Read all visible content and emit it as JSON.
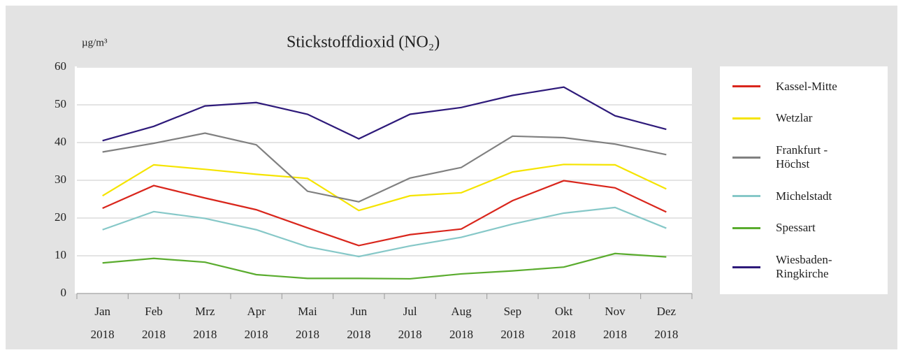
{
  "chart_data": {
    "type": "line",
    "title": "Stickstoffdioxid (NO₂)",
    "y_label": "µg/m³",
    "categories": [
      [
        "Jan",
        "2018"
      ],
      [
        "Feb",
        "2018"
      ],
      [
        "Mrz",
        "2018"
      ],
      [
        "Apr",
        "2018"
      ],
      [
        "Mai",
        "2018"
      ],
      [
        "Jun",
        "2018"
      ],
      [
        "Jul",
        "2018"
      ],
      [
        "Aug",
        "2018"
      ],
      [
        "Sep",
        "2018"
      ],
      [
        "Okt",
        "2018"
      ],
      [
        "Nov",
        "2018"
      ],
      [
        "Dez",
        "2018"
      ]
    ],
    "ylim": [
      0,
      60
    ],
    "yticks": [
      0,
      10,
      20,
      30,
      40,
      50,
      60
    ],
    "grid": true,
    "series": [
      {
        "name": "Kassel-Mitte",
        "color": "#d9261c",
        "values": [
          22.6,
          28.6,
          25.3,
          22.2,
          17.4,
          12.7,
          15.6,
          17.1,
          24.6,
          29.9,
          28,
          21.6
        ]
      },
      {
        "name": "Wetzlar",
        "color": "#f5e400",
        "values": [
          25.9,
          34.1,
          32.9,
          31.6,
          30.5,
          22,
          25.9,
          26.7,
          32.2,
          34.2,
          34.1,
          27.7
        ]
      },
      {
        "name": "Frankfurt - Höchst",
        "color": "#808080",
        "values": [
          37.5,
          39.8,
          42.5,
          39.4,
          27.1,
          24.3,
          30.6,
          33.4,
          41.7,
          41.3,
          39.6,
          36.8
        ]
      },
      {
        "name": "Michelstadt",
        "color": "#86c8c8",
        "values": [
          16.9,
          21.7,
          19.9,
          16.9,
          12.4,
          9.8,
          12.6,
          14.9,
          18.4,
          21.3,
          22.8,
          17.3
        ]
      },
      {
        "name": "Spessart",
        "color": "#5aac2e",
        "values": [
          8.1,
          9.3,
          8.3,
          5,
          4,
          4,
          3.9,
          5.2,
          6,
          7,
          10.6,
          9.7
        ]
      },
      {
        "name": "Wiesbaden-Ringkirche",
        "color": "#2e1a7a",
        "values": [
          40.5,
          44.3,
          49.7,
          50.6,
          47.5,
          41,
          47.5,
          49.3,
          52.5,
          54.7,
          47.1,
          43.5
        ]
      }
    ]
  }
}
